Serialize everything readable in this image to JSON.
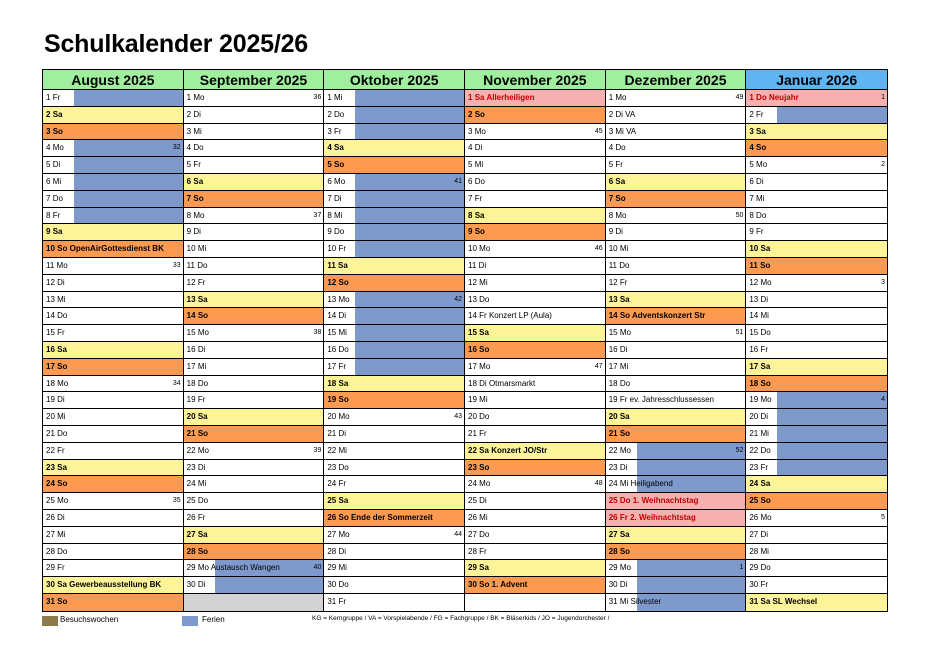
{
  "title": "Schulkalender 2025/26",
  "colors": {
    "header": "#9fef9f",
    "header_current": "#5fb4f2",
    "saturday": "#fdf499",
    "sunday": "#fb9a50",
    "holiday": "#f7b0b0",
    "ferien": "#7e9acc",
    "besuchswochen": "#8c7a4a"
  },
  "months": [
    {
      "name": "August 2025",
      "days": [
        {
          "d": "1",
          "w": "Fr",
          "f": 1
        },
        {
          "d": "2",
          "w": "Sa"
        },
        {
          "d": "3",
          "w": "So"
        },
        {
          "d": "4",
          "w": "Mo",
          "f": 1,
          "k": "32"
        },
        {
          "d": "5",
          "w": "Di",
          "f": 1
        },
        {
          "d": "6",
          "w": "Mi",
          "f": 1
        },
        {
          "d": "7",
          "w": "Do",
          "f": 1
        },
        {
          "d": "8",
          "w": "Fr",
          "f": 1
        },
        {
          "d": "9",
          "w": "Sa"
        },
        {
          "d": "10",
          "w": "So",
          "e": "OpenAirGottesdienst BK"
        },
        {
          "d": "11",
          "w": "Mo",
          "k": "33"
        },
        {
          "d": "12",
          "w": "Di"
        },
        {
          "d": "13",
          "w": "Mi"
        },
        {
          "d": "14",
          "w": "Do"
        },
        {
          "d": "15",
          "w": "Fr"
        },
        {
          "d": "16",
          "w": "Sa"
        },
        {
          "d": "17",
          "w": "So"
        },
        {
          "d": "18",
          "w": "Mo",
          "k": "34"
        },
        {
          "d": "19",
          "w": "Di"
        },
        {
          "d": "20",
          "w": "Mi"
        },
        {
          "d": "21",
          "w": "Do"
        },
        {
          "d": "22",
          "w": "Fr"
        },
        {
          "d": "23",
          "w": "Sa"
        },
        {
          "d": "24",
          "w": "So"
        },
        {
          "d": "25",
          "w": "Mo",
          "k": "35"
        },
        {
          "d": "26",
          "w": "Di"
        },
        {
          "d": "27",
          "w": "Mi"
        },
        {
          "d": "28",
          "w": "Do"
        },
        {
          "d": "29",
          "w": "Fr"
        },
        {
          "d": "30",
          "w": "Sa",
          "e": "Gewerbeausstellung BK"
        },
        {
          "d": "31",
          "w": "So"
        }
      ]
    },
    {
      "name": "September 2025",
      "days": [
        {
          "d": "1",
          "w": "Mo",
          "k": "36"
        },
        {
          "d": "2",
          "w": "Di"
        },
        {
          "d": "3",
          "w": "Mi"
        },
        {
          "d": "4",
          "w": "Do"
        },
        {
          "d": "5",
          "w": "Fr"
        },
        {
          "d": "6",
          "w": "Sa"
        },
        {
          "d": "7",
          "w": "So"
        },
        {
          "d": "8",
          "w": "Mo",
          "k": "37"
        },
        {
          "d": "9",
          "w": "Di"
        },
        {
          "d": "10",
          "w": "Mi"
        },
        {
          "d": "11",
          "w": "Do"
        },
        {
          "d": "12",
          "w": "Fr"
        },
        {
          "d": "13",
          "w": "Sa"
        },
        {
          "d": "14",
          "w": "So"
        },
        {
          "d": "15",
          "w": "Mo",
          "k": "38"
        },
        {
          "d": "16",
          "w": "Di"
        },
        {
          "d": "17",
          "w": "Mi"
        },
        {
          "d": "18",
          "w": "Do"
        },
        {
          "d": "19",
          "w": "Fr"
        },
        {
          "d": "20",
          "w": "Sa"
        },
        {
          "d": "21",
          "w": "So"
        },
        {
          "d": "22",
          "w": "Mo",
          "k": "39"
        },
        {
          "d": "23",
          "w": "Di"
        },
        {
          "d": "24",
          "w": "Mi"
        },
        {
          "d": "25",
          "w": "Do"
        },
        {
          "d": "26",
          "w": "Fr"
        },
        {
          "d": "27",
          "w": "Sa"
        },
        {
          "d": "28",
          "w": "So"
        },
        {
          "d": "29",
          "w": "Mo",
          "k": "40",
          "f": 1,
          "e": "Austausch Wangen"
        },
        {
          "d": "30",
          "w": "Di",
          "f": 1
        },
        {
          "g": 1
        }
      ]
    },
    {
      "name": "Oktober 2025",
      "days": [
        {
          "d": "1",
          "w": "Mi",
          "f": 1
        },
        {
          "d": "2",
          "w": "Do",
          "f": 1
        },
        {
          "d": "3",
          "w": "Fr",
          "f": 1
        },
        {
          "d": "4",
          "w": "Sa"
        },
        {
          "d": "5",
          "w": "So"
        },
        {
          "d": "6",
          "w": "Mo",
          "k": "41",
          "f": 1
        },
        {
          "d": "7",
          "w": "Di",
          "f": 1
        },
        {
          "d": "8",
          "w": "Mi",
          "f": 1
        },
        {
          "d": "9",
          "w": "Do",
          "f": 1
        },
        {
          "d": "10",
          "w": "Fr",
          "f": 1
        },
        {
          "d": "11",
          "w": "Sa"
        },
        {
          "d": "12",
          "w": "So"
        },
        {
          "d": "13",
          "w": "Mo",
          "k": "42",
          "f": 1
        },
        {
          "d": "14",
          "w": "Di",
          "f": 1
        },
        {
          "d": "15",
          "w": "Mi",
          "f": 1
        },
        {
          "d": "16",
          "w": "Do",
          "f": 1
        },
        {
          "d": "17",
          "w": "Fr",
          "f": 1
        },
        {
          "d": "18",
          "w": "Sa"
        },
        {
          "d": "19",
          "w": "So"
        },
        {
          "d": "20",
          "w": "Mo",
          "k": "43"
        },
        {
          "d": "21",
          "w": "Di"
        },
        {
          "d": "22",
          "w": "Mi"
        },
        {
          "d": "23",
          "w": "Do"
        },
        {
          "d": "24",
          "w": "Fr"
        },
        {
          "d": "25",
          "w": "Sa"
        },
        {
          "d": "26",
          "w": "So",
          "e": "Ende der Sommerzeit"
        },
        {
          "d": "27",
          "w": "Mo",
          "k": "44"
        },
        {
          "d": "28",
          "w": "Di"
        },
        {
          "d": "29",
          "w": "Mi"
        },
        {
          "d": "30",
          "w": "Do"
        },
        {
          "d": "31",
          "w": "Fr"
        }
      ]
    },
    {
      "name": "November 2025",
      "days": [
        {
          "d": "1",
          "w": "Sa",
          "h": 1,
          "e": "Allerheiligen"
        },
        {
          "d": "2",
          "w": "So"
        },
        {
          "d": "3",
          "w": "Mo",
          "k": "45"
        },
        {
          "d": "4",
          "w": "Di"
        },
        {
          "d": "5",
          "w": "Mi"
        },
        {
          "d": "6",
          "w": "Do"
        },
        {
          "d": "7",
          "w": "Fr"
        },
        {
          "d": "8",
          "w": "Sa"
        },
        {
          "d": "9",
          "w": "So"
        },
        {
          "d": "10",
          "w": "Mo",
          "k": "46"
        },
        {
          "d": "11",
          "w": "Di"
        },
        {
          "d": "12",
          "w": "Mi"
        },
        {
          "d": "13",
          "w": "Do"
        },
        {
          "d": "14",
          "w": "Fr",
          "e": "Konzert LP (Aula)"
        },
        {
          "d": "15",
          "w": "Sa"
        },
        {
          "d": "16",
          "w": "So"
        },
        {
          "d": "17",
          "w": "Mo",
          "k": "47"
        },
        {
          "d": "18",
          "w": "Di",
          "e": "Otmarsmarkt"
        },
        {
          "d": "19",
          "w": "Mi"
        },
        {
          "d": "20",
          "w": "Do"
        },
        {
          "d": "21",
          "w": "Fr"
        },
        {
          "d": "22",
          "w": "Sa",
          "e": "Konzert JO/Str"
        },
        {
          "d": "23",
          "w": "So"
        },
        {
          "d": "24",
          "w": "Mo",
          "k": "48"
        },
        {
          "d": "25",
          "w": "Di"
        },
        {
          "d": "26",
          "w": "Mi"
        },
        {
          "d": "27",
          "w": "Do"
        },
        {
          "d": "28",
          "w": "Fr"
        },
        {
          "d": "29",
          "w": "Sa"
        },
        {
          "d": "30",
          "w": "So",
          "e": "1. Advent"
        },
        {
          "x": 1
        }
      ]
    },
    {
      "name": "Dezember 2025",
      "days": [
        {
          "d": "1",
          "w": "Mo",
          "k": "49"
        },
        {
          "d": "2",
          "w": "Di",
          "e": "VA"
        },
        {
          "d": "3",
          "w": "Mi",
          "e": "VA"
        },
        {
          "d": "4",
          "w": "Do"
        },
        {
          "d": "5",
          "w": "Fr"
        },
        {
          "d": "6",
          "w": "Sa"
        },
        {
          "d": "7",
          "w": "So"
        },
        {
          "d": "8",
          "w": "Mo",
          "k": "50"
        },
        {
          "d": "9",
          "w": "Di"
        },
        {
          "d": "10",
          "w": "Mi"
        },
        {
          "d": "11",
          "w": "Do"
        },
        {
          "d": "12",
          "w": "Fr"
        },
        {
          "d": "13",
          "w": "Sa"
        },
        {
          "d": "14",
          "w": "So",
          "e": "Adventskonzert Str"
        },
        {
          "d": "15",
          "w": "Mo",
          "k": "51"
        },
        {
          "d": "16",
          "w": "Di"
        },
        {
          "d": "17",
          "w": "Mi"
        },
        {
          "d": "18",
          "w": "Do"
        },
        {
          "d": "19",
          "w": "Fr",
          "e": "ev. Jahresschlussessen"
        },
        {
          "d": "20",
          "w": "Sa"
        },
        {
          "d": "21",
          "w": "So"
        },
        {
          "d": "22",
          "w": "Mo",
          "k": "52",
          "f": 1
        },
        {
          "d": "23",
          "w": "Di",
          "f": 1
        },
        {
          "d": "24",
          "w": "Mi",
          "f": 1,
          "e": "Heiligabend"
        },
        {
          "d": "25",
          "w": "Do",
          "h": 1,
          "e": "1. Weihnachtstag"
        },
        {
          "d": "26",
          "w": "Fr",
          "h": 1,
          "e": "2. Weihnachtstag"
        },
        {
          "d": "27",
          "w": "Sa"
        },
        {
          "d": "28",
          "w": "So"
        },
        {
          "d": "29",
          "w": "Mo",
          "k": "1",
          "f": 1
        },
        {
          "d": "30",
          "w": "Di",
          "f": 1
        },
        {
          "d": "31",
          "w": "Mi",
          "f": 1,
          "e": "Silvester"
        }
      ]
    },
    {
      "name": "Januar 2026",
      "cur": 1,
      "days": [
        {
          "d": "1",
          "w": "Do",
          "h": 1,
          "k": "1",
          "e": "Neujahr"
        },
        {
          "d": "2",
          "w": "Fr",
          "f": 1
        },
        {
          "d": "3",
          "w": "Sa"
        },
        {
          "d": "4",
          "w": "So"
        },
        {
          "d": "5",
          "w": "Mo",
          "k": "2"
        },
        {
          "d": "6",
          "w": "Di"
        },
        {
          "d": "7",
          "w": "Mi"
        },
        {
          "d": "8",
          "w": "Do"
        },
        {
          "d": "9",
          "w": "Fr"
        },
        {
          "d": "10",
          "w": "Sa"
        },
        {
          "d": "11",
          "w": "So"
        },
        {
          "d": "12",
          "w": "Mo",
          "k": "3"
        },
        {
          "d": "13",
          "w": "Di"
        },
        {
          "d": "14",
          "w": "Mi"
        },
        {
          "d": "15",
          "w": "Do"
        },
        {
          "d": "16",
          "w": "Fr"
        },
        {
          "d": "17",
          "w": "Sa"
        },
        {
          "d": "18",
          "w": "So"
        },
        {
          "d": "19",
          "w": "Mo",
          "k": "4",
          "f": 1
        },
        {
          "d": "20",
          "w": "Di",
          "f": 1
        },
        {
          "d": "21",
          "w": "Mi",
          "f": 1
        },
        {
          "d": "22",
          "w": "Do",
          "f": 1
        },
        {
          "d": "23",
          "w": "Fr",
          "f": 1
        },
        {
          "d": "24",
          "w": "Sa"
        },
        {
          "d": "25",
          "w": "So"
        },
        {
          "d": "26",
          "w": "Mo",
          "k": "5"
        },
        {
          "d": "27",
          "w": "Di"
        },
        {
          "d": "28",
          "w": "Mi"
        },
        {
          "d": "29",
          "w": "Do"
        },
        {
          "d": "30",
          "w": "Fr"
        },
        {
          "d": "31",
          "w": "Sa",
          "e": "SL Wechsel"
        }
      ]
    }
  ],
  "legend": {
    "besuchswochen": "Besuchswochen",
    "ferien": "Ferien",
    "note": "KG = Kerngruppe / VA = Vorspielabende / FG = Fachgruppe / BK = Bläserkids / JO = Jugendorchester /"
  }
}
